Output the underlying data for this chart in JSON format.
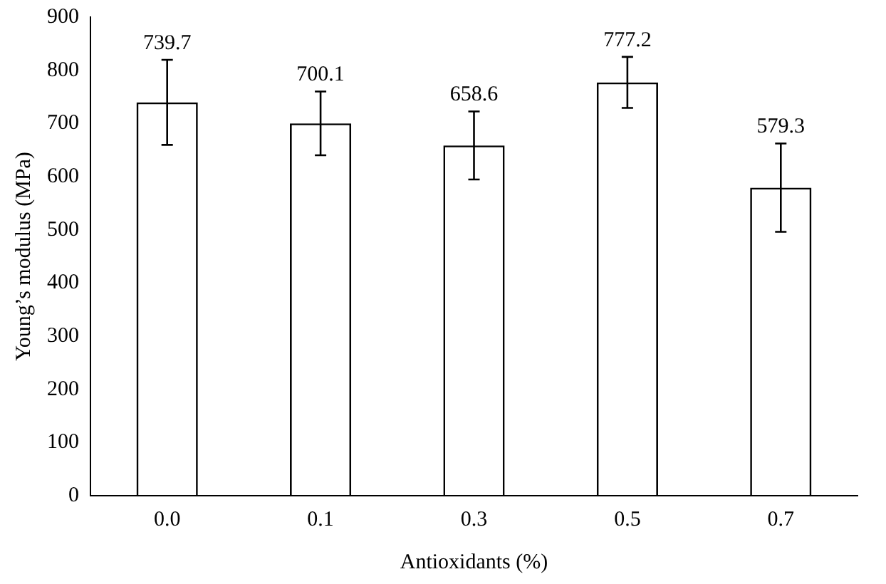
{
  "chart_data": {
    "type": "bar",
    "xlabel": "Antioxidants (%)",
    "ylabel": "Young’s modulus (MPa)",
    "categories": [
      "0.0",
      "0.1",
      "0.3",
      "0.5",
      "0.7"
    ],
    "values": [
      739.7,
      700.1,
      658.6,
      777.2,
      579.3
    ],
    "errors": [
      80,
      60,
      64,
      48,
      83
    ],
    "color": "#000000",
    "ylim": [
      0,
      900
    ],
    "yticks": [
      0,
      100,
      200,
      300,
      400,
      500,
      600,
      700,
      800,
      900
    ],
    "data_labels": true,
    "grid": false,
    "legend": false
  }
}
